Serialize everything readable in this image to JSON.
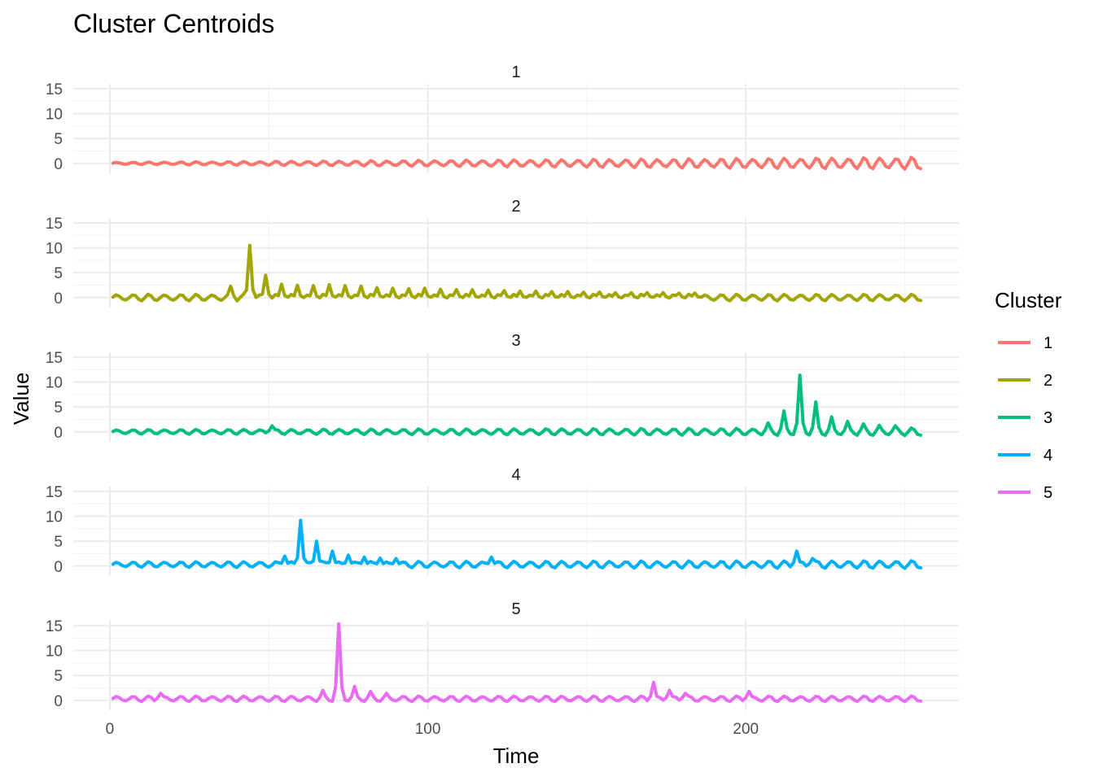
{
  "chart_data": {
    "type": "line",
    "title": "Cluster Centroids",
    "xlabel": "Time",
    "ylabel": "Value",
    "xlim": [
      1,
      255
    ],
    "ylim": [
      -2,
      16
    ],
    "x_ticks": [
      0,
      100,
      200
    ],
    "y_ticks": [
      0,
      5,
      10,
      15
    ],
    "grid": true,
    "facets": "vertical",
    "legend": {
      "title": "Cluster",
      "position": "right"
    },
    "colors": {
      "1": "#F8766D",
      "2": "#A3A500",
      "3": "#00BF7D",
      "4": "#00B0F6",
      "5": "#E76BF3"
    },
    "series": [
      {
        "name": "1",
        "description": "oscillating near 0 with amplitude growing from ~0.2 to ~1.1 across the series",
        "baseline": 0,
        "amp_start": 0.2,
        "amp_end": 1.1,
        "period": 5,
        "spikes": []
      },
      {
        "name": "2",
        "description": "oscillation around 0 with a dominant spike near t=44 and decaying periodic echoes",
        "baseline": 0,
        "amp_start": 0.6,
        "amp_end": 0.6,
        "period": 5,
        "spikes": [
          [
            38,
            2.3
          ],
          [
            44,
            10.5
          ],
          [
            49,
            4.5
          ],
          [
            54,
            2.7
          ],
          [
            59,
            2.5
          ],
          [
            64,
            2.4
          ],
          [
            69,
            2.6
          ],
          [
            74,
            2.4
          ],
          [
            79,
            2.3
          ],
          [
            84,
            2.0
          ],
          [
            89,
            1.9
          ],
          [
            94,
            1.8
          ],
          [
            99,
            1.9
          ],
          [
            104,
            1.7
          ],
          [
            109,
            1.6
          ],
          [
            114,
            1.6
          ],
          [
            119,
            1.5
          ],
          [
            124,
            1.4
          ],
          [
            129,
            1.3
          ],
          [
            134,
            1.3
          ],
          [
            139,
            1.2
          ],
          [
            144,
            1.2
          ],
          [
            149,
            1.1
          ],
          [
            154,
            1.1
          ],
          [
            159,
            1.0
          ],
          [
            164,
            1.0
          ],
          [
            169,
            1.0
          ],
          [
            174,
            1.0
          ],
          [
            179,
            0.9
          ],
          [
            184,
            0.9
          ]
        ]
      },
      {
        "name": "3",
        "description": "small oscillation around 0 with a cluster of spikes near t=217",
        "baseline": 0,
        "amp_start": 0.4,
        "amp_end": 0.7,
        "period": 5,
        "spikes": [
          [
            51,
            1.2
          ],
          [
            207,
            1.8
          ],
          [
            212,
            4.2
          ],
          [
            217,
            11.4
          ],
          [
            222,
            6.0
          ],
          [
            227,
            3.0
          ],
          [
            232,
            2.1
          ],
          [
            237,
            1.6
          ],
          [
            242,
            1.3
          ],
          [
            247,
            1.2
          ]
        ]
      },
      {
        "name": "4",
        "description": "oscillation around 0.3 with a major spike near t=60 and a minor spike near t=216",
        "baseline": 0.3,
        "amp_start": 0.5,
        "amp_end": 0.7,
        "period": 5,
        "spikes": [
          [
            55,
            2.0
          ],
          [
            60,
            9.2
          ],
          [
            65,
            5.0
          ],
          [
            70,
            3.0
          ],
          [
            75,
            2.2
          ],
          [
            80,
            1.8
          ],
          [
            85,
            1.6
          ],
          [
            90,
            1.5
          ],
          [
            120,
            1.8
          ],
          [
            216,
            3.0
          ],
          [
            221,
            1.5
          ]
        ]
      },
      {
        "name": "5",
        "description": "oscillation around 0.3 with a dominant spike near t=72 and a minor spike near t=171",
        "baseline": 0.3,
        "amp_start": 0.5,
        "amp_end": 0.5,
        "period": 5,
        "spikes": [
          [
            16,
            1.4
          ],
          [
            67,
            2.0
          ],
          [
            72,
            15.4
          ],
          [
            77,
            2.8
          ],
          [
            82,
            1.8
          ],
          [
            87,
            1.4
          ],
          [
            171,
            3.6
          ],
          [
            176,
            2.0
          ],
          [
            181,
            1.4
          ],
          [
            201,
            1.8
          ]
        ]
      }
    ]
  }
}
